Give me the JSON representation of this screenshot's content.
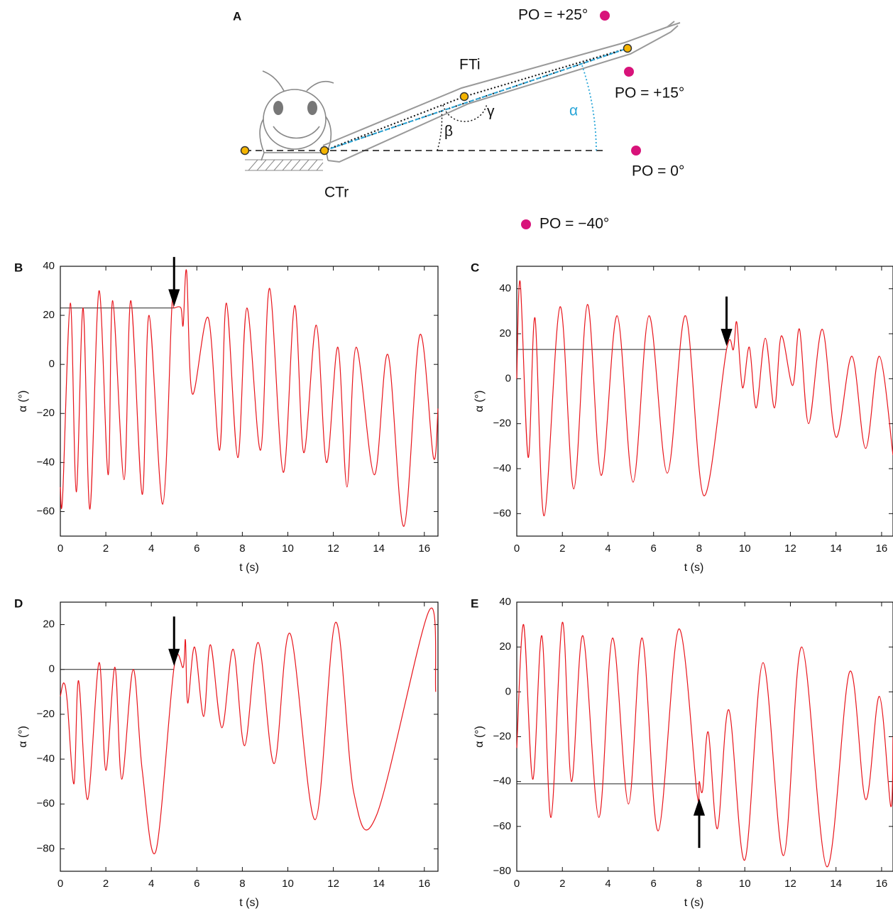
{
  "panel_a": {
    "letter": "A",
    "joint_labels": {
      "femur_tibia": "FTi",
      "coxa_trochanter": "CTr"
    },
    "angle_labels": {
      "alpha": "α",
      "beta": "β",
      "gamma": "γ"
    },
    "positions": [
      "PO = +25°",
      "PO = +15°",
      "PO = 0°",
      "PO = −40°"
    ]
  },
  "chart_data": [
    {
      "type": "line",
      "panel": "B",
      "x_label": "t (s)",
      "y_label": "α (°)",
      "xlim": [
        0,
        16.6
      ],
      "ylim": [
        -70,
        40
      ],
      "xticks": [
        0,
        2,
        4,
        6,
        8,
        10,
        12,
        14,
        16
      ],
      "yticks": [
        {
          "value": -60,
          "label": "−60"
        },
        {
          "value": -40,
          "label": "−40"
        },
        {
          "value": -20,
          "label": "−20"
        },
        0,
        20,
        40
      ],
      "series": [
        {
          "color": "#e8141b",
          "x": [
            0,
            0.1,
            0.44,
            0.7,
            1.0,
            1.3,
            1.7,
            2.1,
            2.3,
            2.8,
            3.1,
            3.6,
            3.9,
            4.5,
            4.9,
            5.0,
            5.3,
            5.4,
            5.55,
            5.8,
            6.5,
            7.0,
            7.3,
            7.8,
            8.2,
            8.8,
            9.2,
            9.8,
            10.3,
            10.7,
            11.25,
            11.7,
            12.2,
            12.6,
            13.0,
            13.8,
            14.4,
            15.1,
            15.8,
            16.4,
            16.6
          ],
          "values": [
            -50,
            -54,
            25,
            -52,
            23,
            -59,
            30,
            -45,
            26,
            -47,
            26,
            -53,
            20,
            -57,
            23,
            23,
            23,
            16,
            38,
            -12,
            19,
            -35,
            25,
            -38,
            23,
            -35,
            31,
            -44,
            24,
            -36,
            16,
            -40,
            7,
            -50,
            7,
            -45,
            4,
            -66,
            12,
            -38,
            -18
          ]
        }
      ],
      "reference_line": {
        "x": [
          0,
          5.0
        ],
        "y": 23
      },
      "arrow": {
        "x": 5.0,
        "y": 25,
        "direction": "down"
      }
    },
    {
      "type": "line",
      "panel": "C",
      "x_label": "t (s)",
      "y_label": "α (°)",
      "xlim": [
        0,
        16.5
      ],
      "ylim": [
        -70,
        50
      ],
      "xticks": [
        0,
        2,
        4,
        6,
        8,
        10,
        12,
        14,
        16
      ],
      "yticks": [
        {
          "value": -60,
          "label": "−60"
        },
        {
          "value": -40,
          "label": "−40"
        },
        {
          "value": -20,
          "label": "−20"
        },
        0,
        20,
        40
      ],
      "series": [
        {
          "color": "#e8141b",
          "x": [
            0,
            0.15,
            0.5,
            0.8,
            1.2,
            1.9,
            2.5,
            3.1,
            3.7,
            4.4,
            5.1,
            5.8,
            6.6,
            7.4,
            8.2,
            9.2,
            9.5,
            9.65,
            9.9,
            10.2,
            10.5,
            10.9,
            11.3,
            11.6,
            12.1,
            12.4,
            12.8,
            13.4,
            14.0,
            14.7,
            15.3,
            15.9,
            16.5
          ],
          "values": [
            0,
            43,
            -35,
            27,
            -61,
            32,
            -49,
            33,
            -43,
            28,
            -46,
            28,
            -42,
            28,
            -52,
            13,
            13,
            25,
            -4,
            14,
            -13,
            18,
            -13,
            19,
            -3,
            22,
            -20,
            22,
            -26,
            10,
            -31,
            10,
            -34
          ]
        }
      ],
      "reference_line": {
        "x": [
          0,
          9.2
        ],
        "y": 13
      },
      "arrow": {
        "x": 9.2,
        "y": 16,
        "direction": "down"
      }
    },
    {
      "type": "line",
      "panel": "D",
      "x_label": "t (s)",
      "y_label": "α (°)",
      "xlim": [
        0,
        16.6
      ],
      "ylim": [
        -90,
        30
      ],
      "xticks": [
        0,
        2,
        4,
        6,
        8,
        10,
        12,
        14,
        16
      ],
      "yticks": [
        {
          "value": -80,
          "label": "−80"
        },
        {
          "value": -60,
          "label": "−60"
        },
        {
          "value": -40,
          "label": "−40"
        },
        {
          "value": -20,
          "label": "−20"
        },
        0,
        20
      ],
      "series": [
        {
          "color": "#e8141b",
          "x": [
            0,
            0.15,
            0.3,
            0.6,
            0.8,
            1.2,
            1.7,
            2.0,
            2.4,
            2.7,
            3.2,
            3.6,
            4.2,
            5.0,
            5.4,
            5.5,
            5.6,
            5.9,
            6.3,
            6.6,
            7.1,
            7.6,
            8.1,
            8.7,
            9.4,
            10.1,
            11.2,
            12.1,
            12.9,
            13.9,
            16.2,
            16.5
          ],
          "values": [
            -12,
            -6,
            -14,
            -51,
            -5,
            -58,
            3,
            -45,
            1,
            -49,
            0,
            -45,
            -81,
            1,
            1,
            13,
            -15,
            10,
            -21,
            11,
            -26,
            9,
            -34,
            12,
            -42,
            16,
            -67,
            21,
            -55,
            -65,
            26,
            -10
          ]
        }
      ],
      "reference_line": {
        "x": [
          0,
          5.0
        ],
        "y": 0
      },
      "arrow": {
        "x": 5.0,
        "y": 3,
        "direction": "down"
      }
    },
    {
      "type": "line",
      "panel": "E",
      "x_label": "t (s)",
      "y_label": "α (°)",
      "xlim": [
        0,
        16.5
      ],
      "ylim": [
        -80,
        40
      ],
      "xticks": [
        0,
        2,
        4,
        6,
        8,
        10,
        12,
        14,
        16
      ],
      "yticks": [
        {
          "value": -80,
          "label": "−80"
        },
        {
          "value": -60,
          "label": "−60"
        },
        {
          "value": -40,
          "label": "−40"
        },
        {
          "value": -20,
          "label": "−20"
        },
        0,
        20,
        40
      ],
      "series": [
        {
          "color": "#e8141b",
          "x": [
            0,
            0.3,
            0.7,
            1.1,
            1.5,
            2.0,
            2.4,
            2.9,
            3.6,
            4.2,
            4.9,
            5.5,
            6.2,
            7.1,
            7.9,
            8.0,
            8.15,
            8.4,
            8.8,
            9.3,
            10.0,
            10.8,
            11.7,
            12.5,
            13.6,
            14.6,
            15.3,
            15.9,
            16.4,
            16.5
          ],
          "values": [
            -25,
            30,
            -39,
            25,
            -56,
            31,
            -40,
            25,
            -56,
            24,
            -50,
            24,
            -62,
            28,
            -45,
            -40,
            -44,
            -18,
            -61,
            -8,
            -75,
            13,
            -73,
            20,
            -78,
            9,
            -48,
            -2,
            -51,
            -20
          ]
        }
      ],
      "reference_line": {
        "x": [
          0,
          8.0
        ],
        "y": -41
      },
      "arrow": {
        "x": 8.0,
        "y": -49,
        "direction": "up"
      }
    }
  ]
}
